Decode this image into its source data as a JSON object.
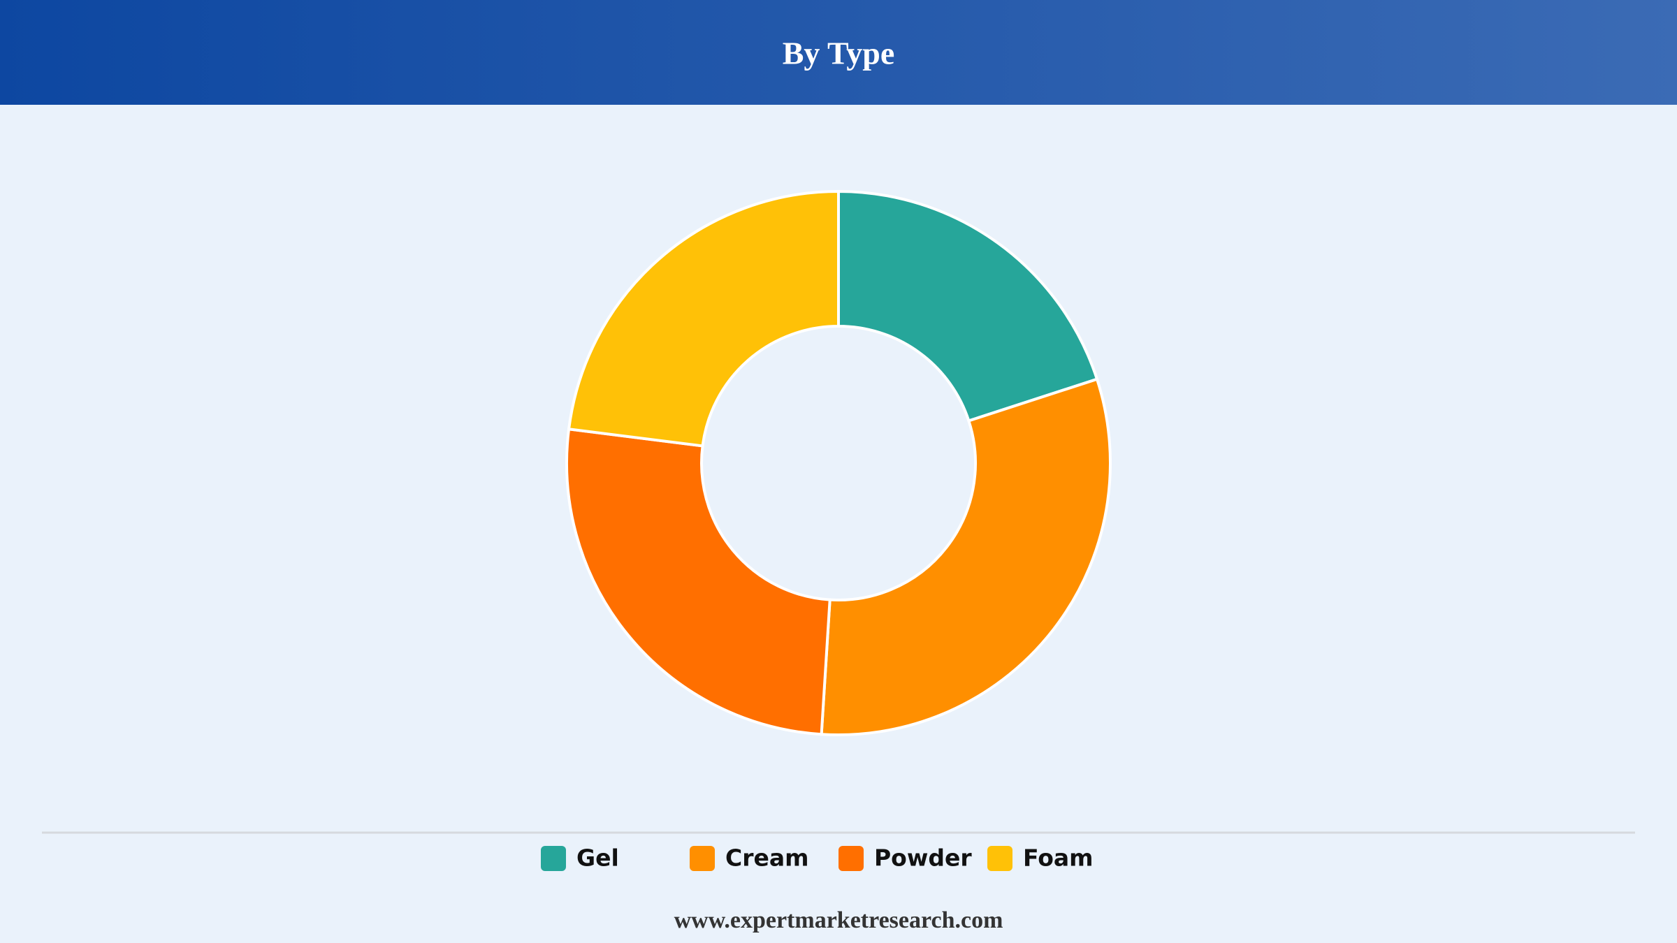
{
  "chart_data": {
    "type": "donut",
    "title": "By Type",
    "categories": [
      "Gel",
      "Cream",
      "Powder",
      "Foam"
    ],
    "values": [
      20,
      31,
      26,
      23
    ],
    "colors": [
      "#26a69a",
      "#ff8f00",
      "#ff6f00",
      "#ffc107"
    ]
  },
  "footer": "www.expertmarketresearch.com"
}
